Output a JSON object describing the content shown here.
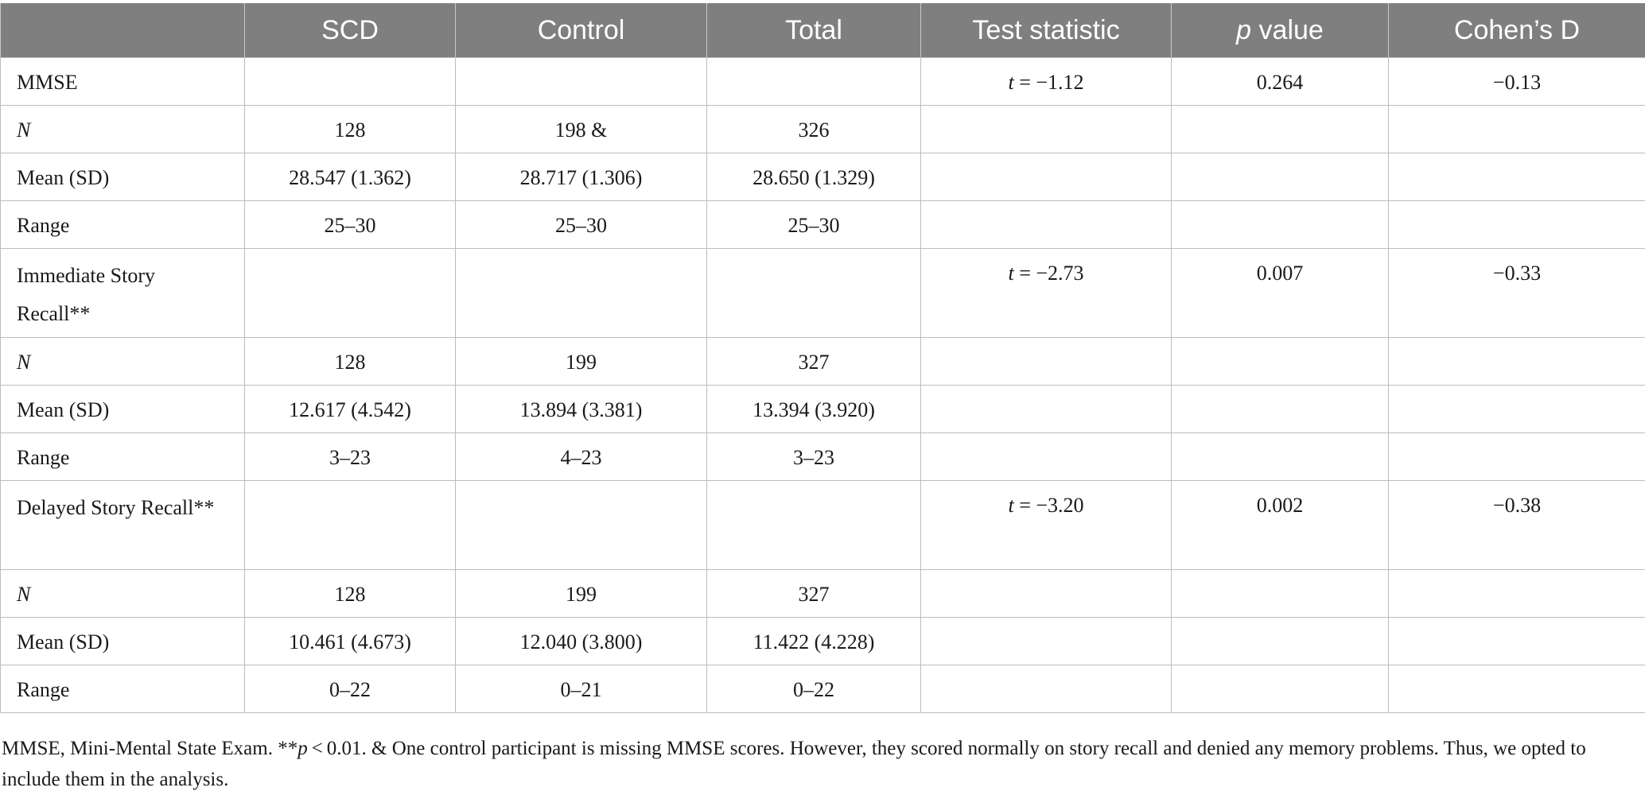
{
  "table": {
    "headers": [
      "",
      "SCD",
      "Control",
      "Total",
      "Test statistic",
      "p value",
      "Cohen’s D"
    ],
    "header_p_italic": "p",
    "header_p_rest": " value",
    "rows": [
      {
        "label": "MMSE",
        "italic": false,
        "tall": false,
        "scd": "",
        "control": "",
        "total": "",
        "stat_var": "t",
        "stat_val": " = −1.12",
        "p": "0.264",
        "d": "−0.13"
      },
      {
        "label": "N",
        "italic": true,
        "tall": false,
        "scd": "128",
        "control": "198 &",
        "total": "326",
        "stat_var": "",
        "stat_val": "",
        "p": "",
        "d": ""
      },
      {
        "label": "Mean (SD)",
        "italic": false,
        "tall": false,
        "scd": "28.547 (1.362)",
        "control": "28.717 (1.306)",
        "total": "28.650 (1.329)",
        "stat_var": "",
        "stat_val": "",
        "p": "",
        "d": ""
      },
      {
        "label": "Range",
        "italic": false,
        "tall": false,
        "scd": "25–30",
        "control": "25–30",
        "total": "25–30",
        "stat_var": "",
        "stat_val": "",
        "p": "",
        "d": ""
      },
      {
        "label": "Immediate Story Recall**",
        "italic": false,
        "tall": true,
        "scd": "",
        "control": "",
        "total": "",
        "stat_var": "t",
        "stat_val": " = −2.73",
        "p": "0.007",
        "d": "−0.33"
      },
      {
        "label": "N",
        "italic": true,
        "tall": false,
        "scd": "128",
        "control": "199",
        "total": "327",
        "stat_var": "",
        "stat_val": "",
        "p": "",
        "d": ""
      },
      {
        "label": "Mean (SD)",
        "italic": false,
        "tall": false,
        "scd": "12.617 (4.542)",
        "control": "13.894 (3.381)",
        "total": "13.394 (3.920)",
        "stat_var": "",
        "stat_val": "",
        "p": "",
        "d": ""
      },
      {
        "label": "Range",
        "italic": false,
        "tall": false,
        "scd": "3–23",
        "control": "4–23",
        "total": "3–23",
        "stat_var": "",
        "stat_val": "",
        "p": "",
        "d": ""
      },
      {
        "label": "Delayed Story Recall**",
        "italic": false,
        "tall": true,
        "scd": "",
        "control": "",
        "total": "",
        "stat_var": "t",
        "stat_val": " = −3.20",
        "p": "0.002",
        "d": "−0.38"
      },
      {
        "label": "N",
        "italic": true,
        "tall": false,
        "scd": "128",
        "control": "199",
        "total": "327",
        "stat_var": "",
        "stat_val": "",
        "p": "",
        "d": ""
      },
      {
        "label": "Mean (SD)",
        "italic": false,
        "tall": false,
        "scd": "10.461 (4.673)",
        "control": "12.040 (3.800)",
        "total": "11.422 (4.228)",
        "stat_var": "",
        "stat_val": "",
        "p": "",
        "d": ""
      },
      {
        "label": "Range",
        "italic": false,
        "tall": false,
        "scd": "0–22",
        "control": "0–21",
        "total": "0–22",
        "stat_var": "",
        "stat_val": "",
        "p": "",
        "d": ""
      }
    ]
  },
  "footnote": {
    "part1": "MMSE, Mini-Mental State Exam. **",
    "p_italic": "p",
    "part2": " < 0.01. & One control participant is missing MMSE scores. However, they scored normally on story recall and denied any memory problems. Thus, we opted to include them in the analysis."
  },
  "colors": {
    "header_bg": "#7f7f7f",
    "header_text": "#ffffff",
    "border": "#bdbdbd"
  }
}
